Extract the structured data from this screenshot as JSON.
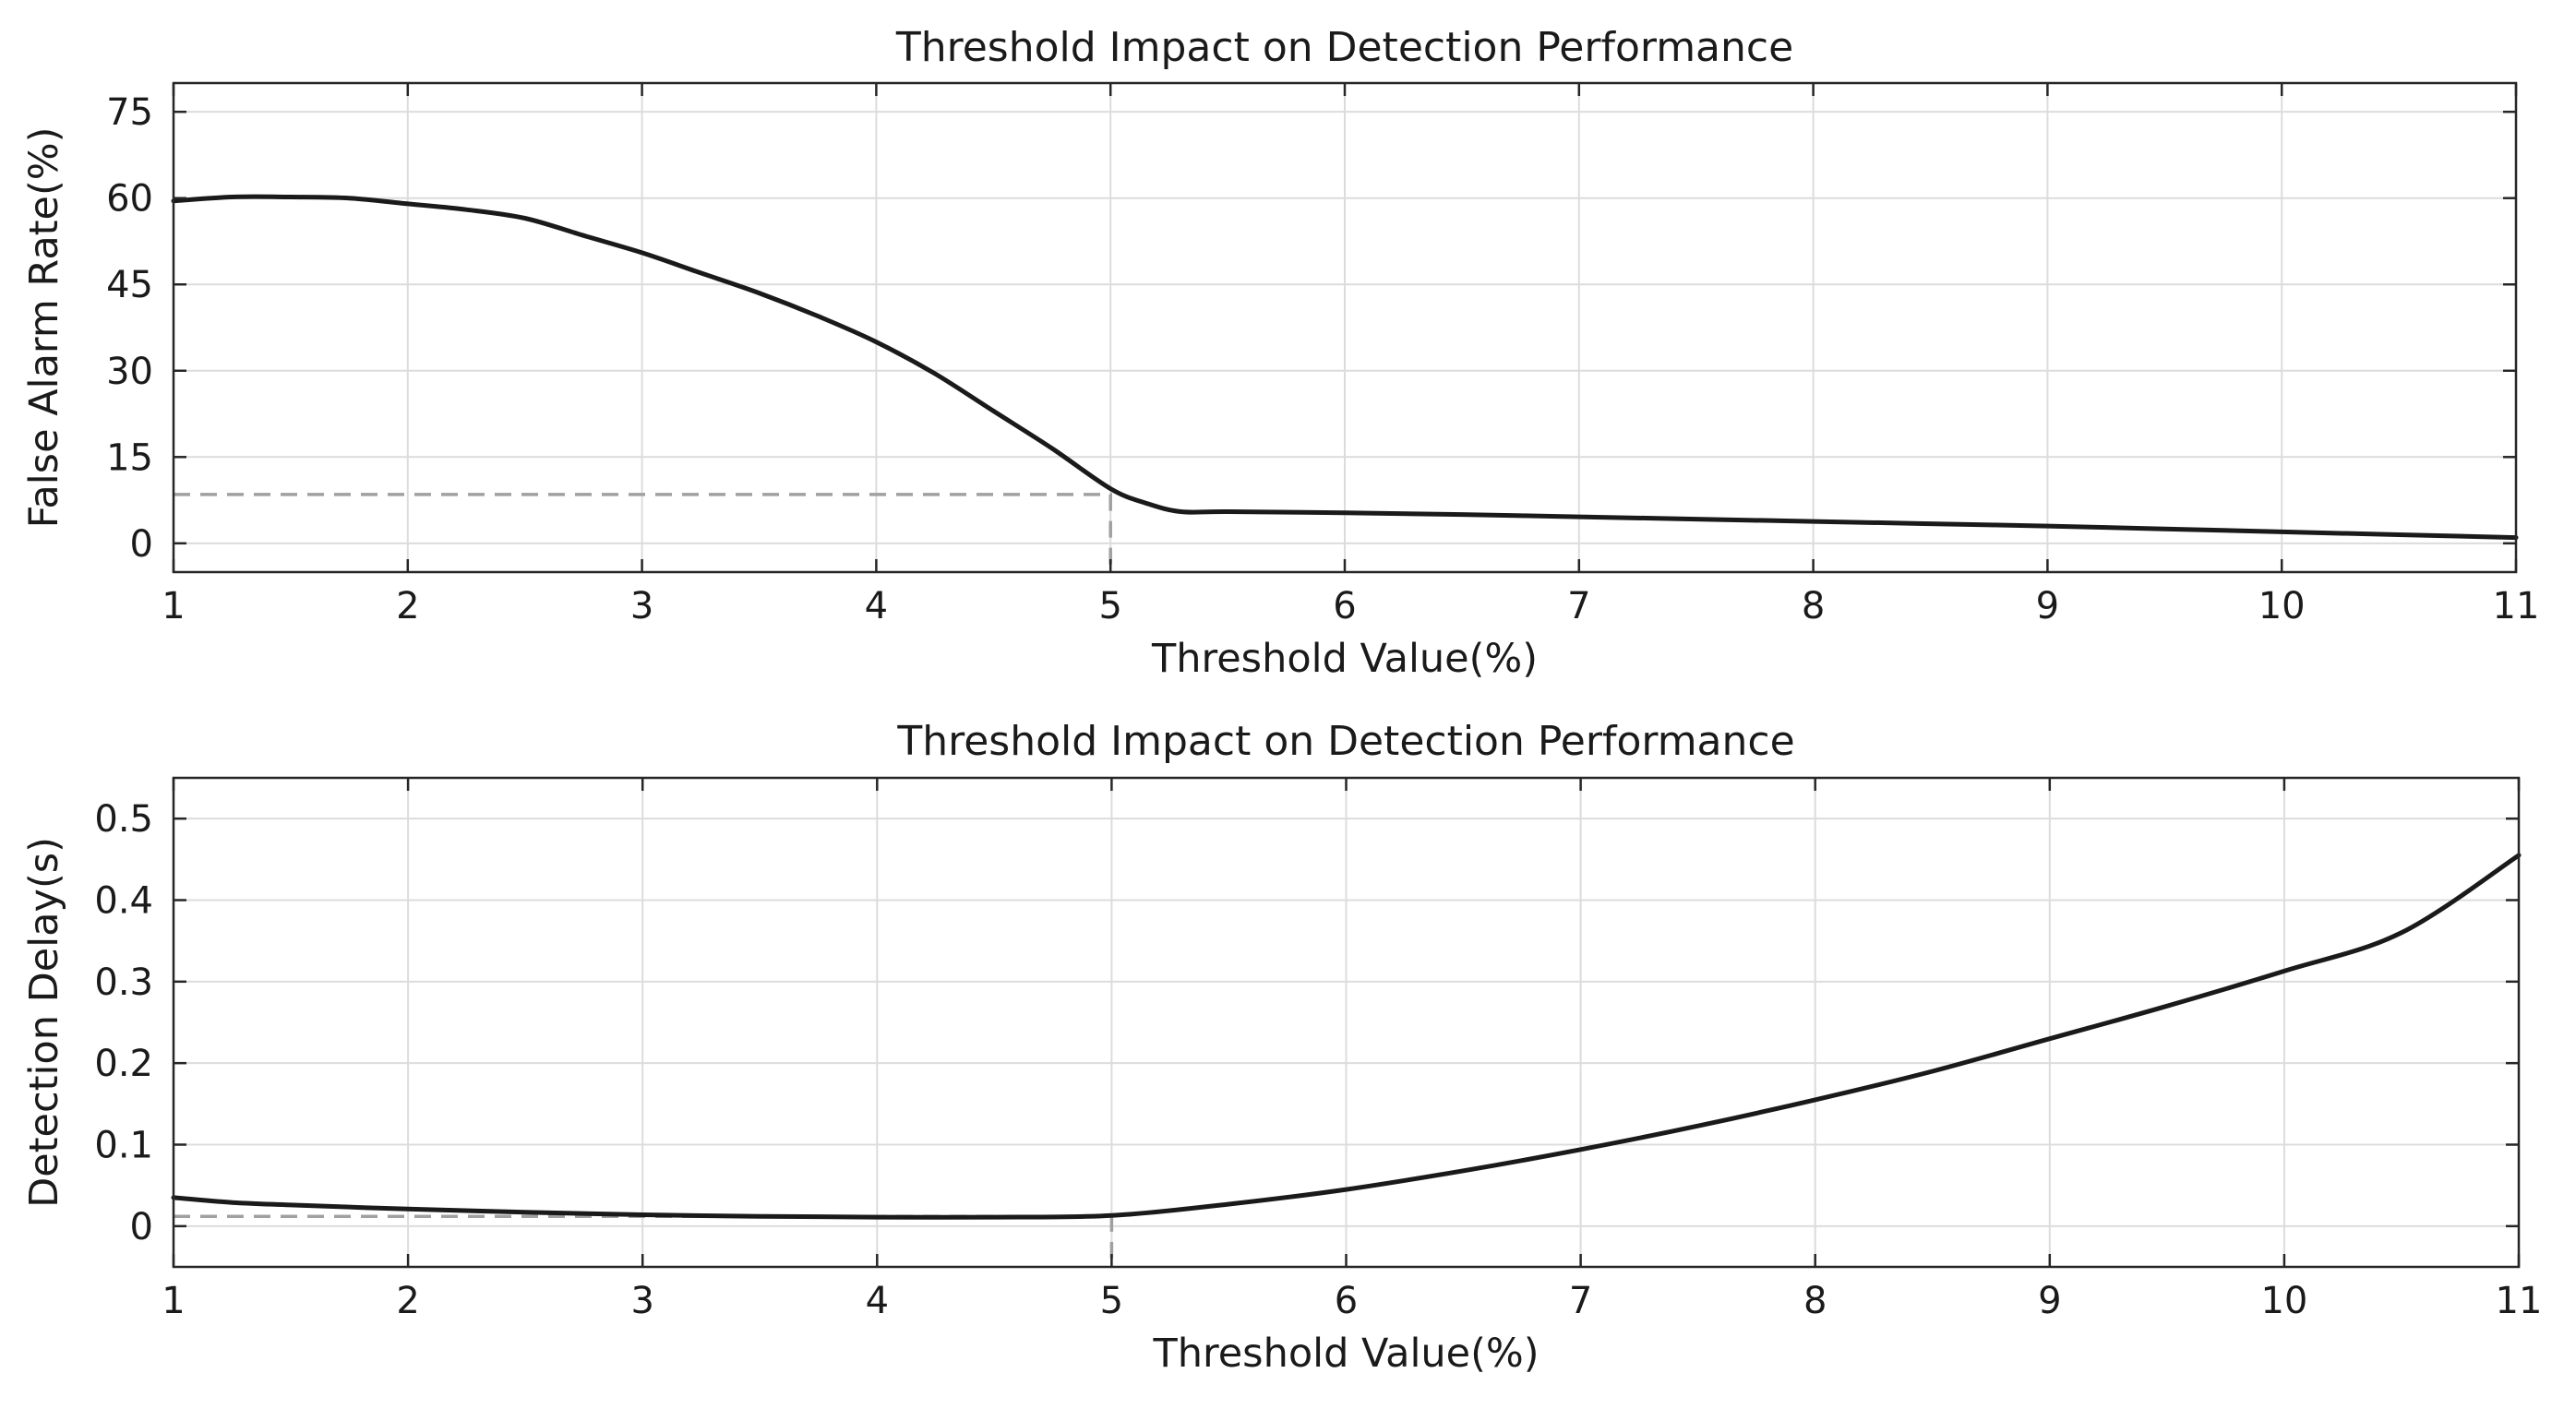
{
  "chart_data": [
    {
      "type": "line",
      "title": "Threshold Impact on Detection Performance",
      "xlabel": "Threshold Value(%)",
      "ylabel": "False Alarm Rate(%)",
      "xlim": [
        1,
        11
      ],
      "ylim": [
        -5,
        80
      ],
      "xticks": [
        1,
        2,
        3,
        4,
        5,
        6,
        7,
        8,
        9,
        10,
        11
      ],
      "yticks": [
        0,
        15,
        30,
        45,
        60,
        75
      ],
      "xtick_labels": [
        "1",
        "2",
        "3",
        "4",
        "5",
        "6",
        "7",
        "8",
        "9",
        "10",
        "11"
      ],
      "ytick_labels": [
        "0",
        "15",
        "30",
        "45",
        "60",
        "75"
      ],
      "grid": true,
      "series": [
        {
          "name": "False Alarm Rate",
          "color": "#1a1a1a",
          "x": [
            1.0,
            1.25,
            1.5,
            1.75,
            2.0,
            2.25,
            2.5,
            2.75,
            3.0,
            3.25,
            3.5,
            3.75,
            4.0,
            4.25,
            4.5,
            4.75,
            5.0,
            5.15,
            5.3,
            5.5,
            6.0,
            6.5,
            7.0,
            7.5,
            8.0,
            8.5,
            9.0,
            9.5,
            10.0,
            10.5,
            11.0
          ],
          "y": [
            59.5,
            60.2,
            60.2,
            60.0,
            59.0,
            58.0,
            56.5,
            53.5,
            50.5,
            47.0,
            43.5,
            39.5,
            35.0,
            29.5,
            23.0,
            16.5,
            9.5,
            7.0,
            5.5,
            5.5,
            5.3,
            5.0,
            4.6,
            4.2,
            3.8,
            3.4,
            3.0,
            2.5,
            2.0,
            1.5,
            1.0
          ]
        }
      ],
      "reference": {
        "x": 5,
        "y": 8.5
      }
    },
    {
      "type": "line",
      "title": "Threshold Impact on Detection Performance",
      "xlabel": "Threshold Value(%)",
      "ylabel": "Detection Delay(s)",
      "xlim": [
        1,
        11
      ],
      "ylim": [
        -0.05,
        0.55
      ],
      "xticks": [
        1,
        2,
        3,
        4,
        5,
        6,
        7,
        8,
        9,
        10,
        11
      ],
      "yticks": [
        0,
        0.1,
        0.2,
        0.3,
        0.4,
        0.5
      ],
      "xtick_labels": [
        "1",
        "2",
        "3",
        "4",
        "5",
        "6",
        "7",
        "8",
        "9",
        "10",
        "11"
      ],
      "ytick_labels": [
        "0",
        "0.1",
        "0.2",
        "0.3",
        "0.4",
        "0.5"
      ],
      "grid": true,
      "series": [
        {
          "name": "Detection Delay",
          "color": "#1a1a1a",
          "x": [
            1.0,
            1.25,
            1.5,
            2.0,
            2.5,
            3.0,
            3.5,
            4.0,
            4.5,
            5.0,
            5.5,
            6.0,
            6.5,
            7.0,
            7.5,
            8.0,
            8.5,
            9.0,
            9.5,
            10.0,
            10.5,
            11.0
          ],
          "y": [
            0.035,
            0.029,
            0.026,
            0.021,
            0.017,
            0.014,
            0.012,
            0.011,
            0.011,
            0.013,
            0.027,
            0.045,
            0.068,
            0.094,
            0.123,
            0.155,
            0.19,
            0.23,
            0.27,
            0.313,
            0.36,
            0.455
          ]
        }
      ],
      "reference": {
        "x": 5,
        "y": 0.012
      }
    }
  ]
}
